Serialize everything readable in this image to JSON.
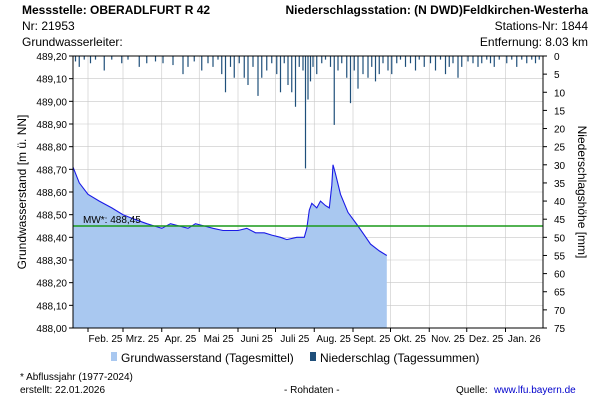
{
  "header": {
    "station_label": "Messstelle: OBERADLFURT R 42",
    "station_nr": "Nr: 21953",
    "aquifer": "Grundwasserleiter:",
    "precip_station": "Niederschlagsstation: (N DWD)Feldkirchen-Westerha",
    "precip_station_nr": "Stations-Nr: 1844",
    "distance": "Entfernung: 8.03 km"
  },
  "footer": {
    "period_note": "* Abflussjahr (1977-2024)",
    "created": "erstellt:  22.01.2026",
    "raw": "- Rohdaten -",
    "source_label": "Quelle:",
    "source_url": "www.lfu.bayern.de"
  },
  "colors": {
    "groundwater_fill": "#a9c8f0",
    "groundwater_line": "#1a1ae6",
    "precip_bar": "#1f4f7a",
    "mean_line": "#1a9a1a",
    "grid": "#c8c8c8"
  },
  "chart_data": {
    "type": "area",
    "xlabel": "",
    "ylabel": "Grundwasserstand [m ü. NN]",
    "y2label": "Niederschlagshöhe [mm]",
    "x_range": [
      "2025-01-20",
      "2026-01-31"
    ],
    "ylim": [
      488.0,
      489.2
    ],
    "y2lim": [
      0,
      75
    ],
    "y2_inverted": true,
    "grid": true,
    "x_ticks": [
      {
        "label": "Feb. 25",
        "date": "2025-02-01"
      },
      {
        "label": "Mrz. 25",
        "date": "2025-03-01"
      },
      {
        "label": "Apr. 25",
        "date": "2025-04-01"
      },
      {
        "label": "Mai 25",
        "date": "2025-05-01"
      },
      {
        "label": "Juni 25",
        "date": "2025-06-01"
      },
      {
        "label": "Juli 25",
        "date": "2025-07-01"
      },
      {
        "label": "Aug. 25",
        "date": "2025-08-01"
      },
      {
        "label": "Sept. 25",
        "date": "2025-09-01"
      },
      {
        "label": "Okt. 25",
        "date": "2025-10-01"
      },
      {
        "label": "Nov. 25",
        "date": "2025-11-01"
      },
      {
        "label": "Dez. 25",
        "date": "2025-12-01"
      },
      {
        "label": "Jan. 26",
        "date": "2026-01-01"
      }
    ],
    "y_ticks": [
      "488,00",
      "488,10",
      "488,20",
      "488,30",
      "488,40",
      "488,50",
      "488,60",
      "488,70",
      "488,80",
      "488,90",
      "489,00",
      "489,10",
      "489,20"
    ],
    "y2_ticks": [
      "0",
      "5",
      "10",
      "15",
      "20",
      "25",
      "30",
      "35",
      "40",
      "45",
      "50",
      "55",
      "60",
      "65",
      "70",
      "75"
    ],
    "mean_line": {
      "label": "MW*: 488,45",
      "value": 488.45
    },
    "legend": {
      "position": "bottom",
      "items": [
        "Grundwasserstand (Tagesmittel)",
        "Niederschlag (Tagessummen)"
      ]
    },
    "series": [
      {
        "name": "Grundwasserstand (Tagesmittel)",
        "kind": "area",
        "points": [
          [
            "2025-01-20",
            488.71
          ],
          [
            "2025-01-25",
            488.64
          ],
          [
            "2025-02-01",
            488.59
          ],
          [
            "2025-02-10",
            488.56
          ],
          [
            "2025-02-20",
            488.53
          ],
          [
            "2025-03-01",
            488.5
          ],
          [
            "2025-03-10",
            488.48
          ],
          [
            "2025-03-20",
            488.46
          ],
          [
            "2025-03-26",
            488.45
          ],
          [
            "2025-04-01",
            488.44
          ],
          [
            "2025-04-08",
            488.46
          ],
          [
            "2025-04-15",
            488.45
          ],
          [
            "2025-04-22",
            488.44
          ],
          [
            "2025-04-28",
            488.46
          ],
          [
            "2025-05-05",
            488.45
          ],
          [
            "2025-05-12",
            488.44
          ],
          [
            "2025-05-20",
            488.43
          ],
          [
            "2025-06-01",
            488.43
          ],
          [
            "2025-06-08",
            488.44
          ],
          [
            "2025-06-15",
            488.42
          ],
          [
            "2025-06-22",
            488.42
          ],
          [
            "2025-06-28",
            488.41
          ],
          [
            "2025-07-05",
            488.4
          ],
          [
            "2025-07-10",
            488.39
          ],
          [
            "2025-07-18",
            488.4
          ],
          [
            "2025-07-24",
            488.4
          ],
          [
            "2025-07-26",
            488.44
          ],
          [
            "2025-07-28",
            488.52
          ],
          [
            "2025-07-30",
            488.55
          ],
          [
            "2025-08-03",
            488.53
          ],
          [
            "2025-08-06",
            488.56
          ],
          [
            "2025-08-10",
            488.54
          ],
          [
            "2025-08-13",
            488.53
          ],
          [
            "2025-08-15",
            488.63
          ],
          [
            "2025-08-16",
            488.72
          ],
          [
            "2025-08-18",
            488.68
          ],
          [
            "2025-08-22",
            488.59
          ],
          [
            "2025-08-28",
            488.51
          ],
          [
            "2025-09-05",
            488.45
          ],
          [
            "2025-09-10",
            488.41
          ],
          [
            "2025-09-15",
            488.37
          ],
          [
            "2025-09-22",
            488.34
          ],
          [
            "2025-09-28",
            488.32
          ]
        ]
      },
      {
        "name": "Niederschlag (Tagessummen)",
        "kind": "bar",
        "points": [
          [
            "2025-01-22",
            1.5
          ],
          [
            "2025-01-25",
            3
          ],
          [
            "2025-01-29",
            1
          ],
          [
            "2025-02-03",
            2
          ],
          [
            "2025-02-07",
            1
          ],
          [
            "2025-02-14",
            4
          ],
          [
            "2025-02-20",
            1
          ],
          [
            "2025-02-28",
            2
          ],
          [
            "2025-03-05",
            1
          ],
          [
            "2025-03-14",
            3
          ],
          [
            "2025-03-20",
            2
          ],
          [
            "2025-03-27",
            1.5
          ],
          [
            "2025-04-02",
            2
          ],
          [
            "2025-04-10",
            2.5
          ],
          [
            "2025-04-18",
            5
          ],
          [
            "2025-04-22",
            3
          ],
          [
            "2025-04-27",
            1.5
          ],
          [
            "2025-05-03",
            4
          ],
          [
            "2025-05-08",
            2
          ],
          [
            "2025-05-12",
            3
          ],
          [
            "2025-05-16",
            1
          ],
          [
            "2025-05-19",
            5
          ],
          [
            "2025-05-22",
            10
          ],
          [
            "2025-05-26",
            3
          ],
          [
            "2025-05-29",
            6
          ],
          [
            "2025-06-02",
            2
          ],
          [
            "2025-06-06",
            6
          ],
          [
            "2025-06-09",
            8
          ],
          [
            "2025-06-13",
            3
          ],
          [
            "2025-06-17",
            11
          ],
          [
            "2025-06-20",
            6
          ],
          [
            "2025-06-24",
            4
          ],
          [
            "2025-06-28",
            2
          ],
          [
            "2025-07-02",
            5
          ],
          [
            "2025-07-05",
            10
          ],
          [
            "2025-07-08",
            2
          ],
          [
            "2025-07-11",
            8
          ],
          [
            "2025-07-14",
            10
          ],
          [
            "2025-07-17",
            14
          ],
          [
            "2025-07-20",
            3
          ],
          [
            "2025-07-23",
            4
          ],
          [
            "2025-07-25",
            31
          ],
          [
            "2025-07-27",
            12
          ],
          [
            "2025-07-29",
            7
          ],
          [
            "2025-07-31",
            3
          ],
          [
            "2025-08-03",
            5
          ],
          [
            "2025-08-07",
            2
          ],
          [
            "2025-08-10",
            1
          ],
          [
            "2025-08-14",
            3
          ],
          [
            "2025-08-17",
            19
          ],
          [
            "2025-08-20",
            4
          ],
          [
            "2025-08-23",
            2
          ],
          [
            "2025-08-27",
            6
          ],
          [
            "2025-08-30",
            13
          ],
          [
            "2025-09-02",
            4
          ],
          [
            "2025-09-05",
            9
          ],
          [
            "2025-09-09",
            5
          ],
          [
            "2025-09-13",
            6
          ],
          [
            "2025-09-16",
            3
          ],
          [
            "2025-09-19",
            7
          ],
          [
            "2025-09-22",
            5
          ],
          [
            "2025-09-25",
            2
          ],
          [
            "2025-09-29",
            4
          ],
          [
            "2025-10-02",
            5
          ],
          [
            "2025-10-06",
            2
          ],
          [
            "2025-10-09",
            1
          ],
          [
            "2025-10-13",
            3
          ],
          [
            "2025-10-17",
            2
          ],
          [
            "2025-10-21",
            4
          ],
          [
            "2025-10-24",
            1
          ],
          [
            "2025-10-28",
            3
          ],
          [
            "2025-11-02",
            2
          ],
          [
            "2025-11-06",
            4
          ],
          [
            "2025-11-10",
            1
          ],
          [
            "2025-11-14",
            5
          ],
          [
            "2025-11-17",
            3
          ],
          [
            "2025-11-20",
            2
          ],
          [
            "2025-11-24",
            6
          ],
          [
            "2025-11-27",
            3
          ],
          [
            "2025-12-02",
            1.5
          ],
          [
            "2025-12-06",
            2
          ],
          [
            "2025-12-10",
            3
          ],
          [
            "2025-12-13",
            2
          ],
          [
            "2025-12-17",
            1
          ],
          [
            "2025-12-20",
            2
          ],
          [
            "2025-12-23",
            3
          ],
          [
            "2025-12-27",
            1
          ],
          [
            "2026-01-02",
            2
          ],
          [
            "2026-01-06",
            1
          ],
          [
            "2026-01-10",
            3
          ],
          [
            "2026-01-14",
            1
          ],
          [
            "2026-01-18",
            2
          ],
          [
            "2026-01-22",
            1
          ],
          [
            "2026-01-25",
            2
          ],
          [
            "2026-01-28",
            1
          ]
        ]
      }
    ]
  }
}
